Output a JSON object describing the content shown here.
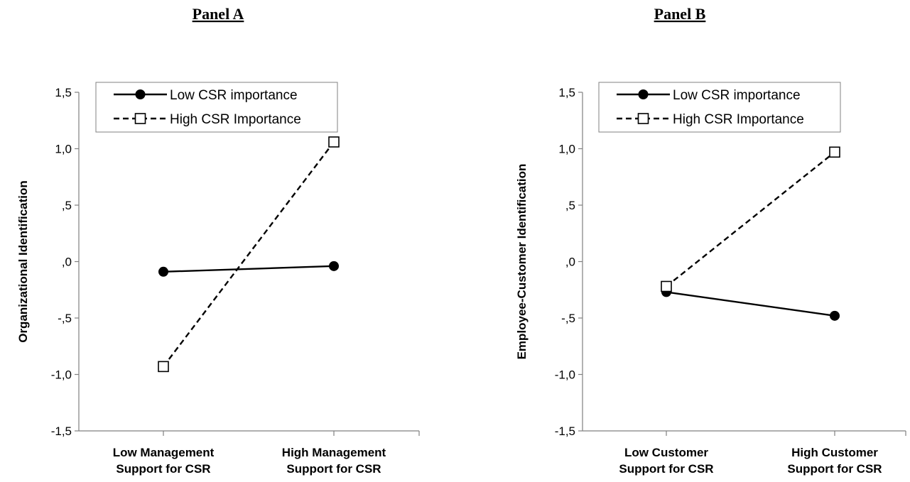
{
  "panels": [
    {
      "title": "Panel A"
    },
    {
      "title": "Panel B"
    }
  ],
  "chart_data": [
    {
      "type": "line",
      "title": "Panel A",
      "ylabel": "Organizational Identification",
      "xlabel": "",
      "categories": [
        "Low Management Support for CSR",
        "High Management Support for CSR"
      ],
      "category_lines": [
        [
          "Low Management",
          "Support for CSR"
        ],
        [
          "High Management",
          "Support for CSR"
        ]
      ],
      "ylim": [
        -1.5,
        1.5
      ],
      "yticks": [
        1.5,
        1.0,
        0.5,
        0.0,
        -0.5,
        -1.0,
        -1.5
      ],
      "ytick_labels": [
        "1,5",
        "1,0",
        ",5",
        ",0",
        "-,5",
        "-1,0",
        "-1,5"
      ],
      "legend_position": "top-left",
      "grid": false,
      "series": [
        {
          "name": "Low CSR importance",
          "values": [
            -0.09,
            -0.04
          ],
          "style": "solid",
          "marker": "filled-circle"
        },
        {
          "name": "High CSR Importance",
          "values": [
            -0.93,
            1.06
          ],
          "style": "dashed",
          "marker": "open-square"
        }
      ]
    },
    {
      "type": "line",
      "title": "Panel B",
      "ylabel": "Employee-Customer Identification",
      "xlabel": "",
      "categories": [
        "Low Customer Support for CSR",
        "High Customer Support for CSR"
      ],
      "category_lines": [
        [
          "Low Customer",
          "Support for CSR"
        ],
        [
          "High Customer",
          "Support for CSR"
        ]
      ],
      "ylim": [
        -1.5,
        1.5
      ],
      "yticks": [
        1.5,
        1.0,
        0.5,
        0.0,
        -0.5,
        -1.0,
        -1.5
      ],
      "ytick_labels": [
        "1,5",
        "1,0",
        ",5",
        ",0",
        "-,5",
        "-1,0",
        "-1,5"
      ],
      "legend_position": "top-left",
      "grid": false,
      "series": [
        {
          "name": "Low CSR importance",
          "values": [
            -0.27,
            -0.48
          ],
          "style": "solid",
          "marker": "filled-circle"
        },
        {
          "name": "High CSR Importance",
          "values": [
            -0.22,
            0.97
          ],
          "style": "dashed",
          "marker": "open-square"
        }
      ]
    }
  ]
}
